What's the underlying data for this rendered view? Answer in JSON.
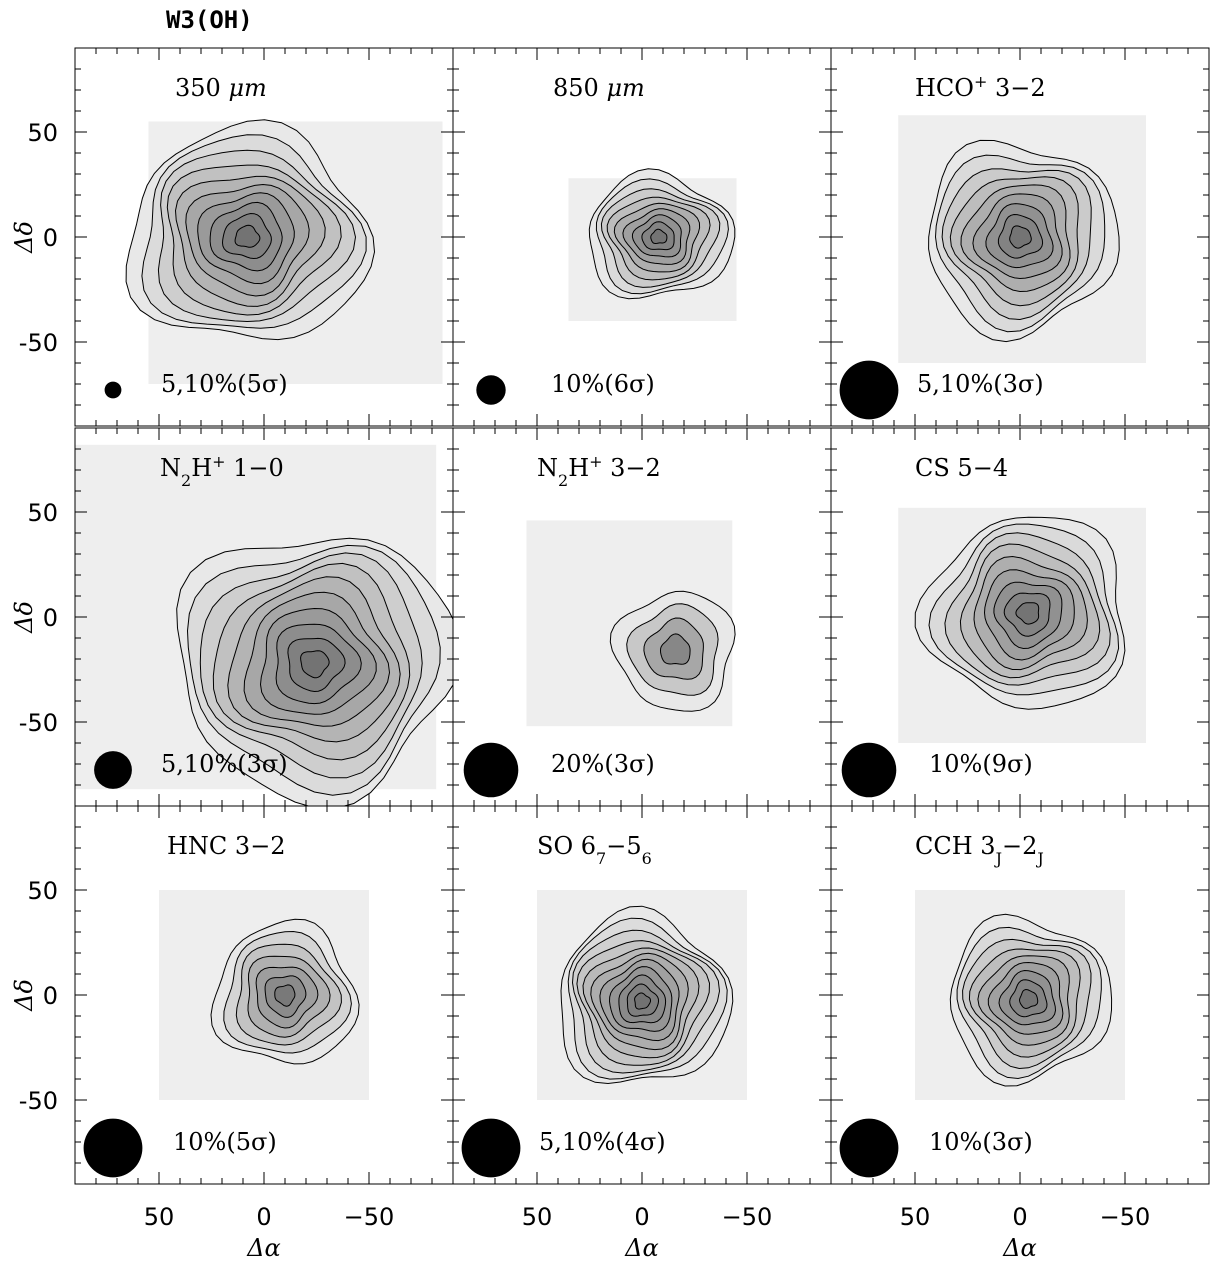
{
  "figure": {
    "title": "W3(OH)",
    "x_axis_label": "Δα",
    "y_axis_label": "Δδ",
    "x_ticks": [
      {
        "value": 50,
        "label": "50"
      },
      {
        "value": 0,
        "label": "0"
      },
      {
        "value": -50,
        "label": "−50"
      }
    ],
    "y_ticks": [
      {
        "value": 50,
        "label": "50"
      },
      {
        "value": 0,
        "label": "0"
      },
      {
        "value": -50,
        "label": "-50"
      }
    ]
  },
  "chart_data": {
    "type": "contour",
    "xlim": [
      90,
      -90
    ],
    "ylim": [
      -90,
      90
    ],
    "layout": "3x3 grid",
    "grayscale_fill": true,
    "panels": [
      {
        "id": "350um",
        "label_main": "350 ",
        "label_sup": "",
        "label_sub": "",
        "label_tail": "μm",
        "label_italic_tail": true,
        "levels": "5,10%(5σ)",
        "beam_diameter": 8,
        "map_extent": {
          "x": [
            55,
            -85
          ],
          "y": [
            -70,
            55
          ]
        },
        "peak": {
          "x": 8,
          "y": 0
        },
        "peak_fraction": 0.85,
        "n_contours": 10
      },
      {
        "id": "850um",
        "label_main": "850 ",
        "label_sup": "",
        "label_sub": "",
        "label_tail": "μm",
        "label_italic_tail": true,
        "levels": "10%(6σ)",
        "beam_diameter": 14,
        "map_extent": {
          "x": [
            35,
            -45
          ],
          "y": [
            -40,
            28
          ]
        },
        "peak": {
          "x": -8,
          "y": 0
        },
        "peak_fraction": 0.9,
        "n_contours": 9
      },
      {
        "id": "hco32",
        "label_main": "HCO",
        "label_sup": "+",
        "label_sub": "",
        "label_tail": " 3−2",
        "label_italic_tail": false,
        "levels": "5,10%(3σ)",
        "beam_diameter": 28,
        "map_extent": {
          "x": [
            58,
            -60
          ],
          "y": [
            -60,
            58
          ]
        },
        "peak": {
          "x": 0,
          "y": 0
        },
        "peak_fraction": 0.8,
        "n_contours": 9
      },
      {
        "id": "n2h10",
        "label_main": "N",
        "label_sub": "2",
        "label_mid": "H",
        "label_sup": "+",
        "label_tail": " 1−0",
        "label_italic_tail": false,
        "levels": "5,10%(3σ)",
        "beam_diameter": 18,
        "map_extent": {
          "x": [
            90,
            -82
          ],
          "y": [
            -82,
            82
          ]
        },
        "peak": {
          "x": -24,
          "y": -22
        },
        "peak_fraction": 0.8,
        "n_contours": 10
      },
      {
        "id": "n2h32",
        "label_main": "N",
        "label_sub": "2",
        "label_mid": "H",
        "label_sup": "+",
        "label_tail": " 3−2",
        "label_italic_tail": false,
        "levels": "20%(3σ)",
        "beam_diameter": 26,
        "map_extent": {
          "x": [
            55,
            -43
          ],
          "y": [
            -52,
            46
          ]
        },
        "peak": {
          "x": -16,
          "y": -16
        },
        "peak_fraction": 0.6,
        "n_contours": 4
      },
      {
        "id": "cs54",
        "label_main": "CS 5−4",
        "label_sup": "",
        "label_sub": "",
        "label_tail": "",
        "label_italic_tail": false,
        "levels": "10%(9σ)",
        "beam_diameter": 26,
        "map_extent": {
          "x": [
            58,
            -60
          ],
          "y": [
            -60,
            52
          ]
        },
        "peak": {
          "x": -4,
          "y": 2
        },
        "peak_fraction": 0.85,
        "n_contours": 9
      },
      {
        "id": "hnc32",
        "label_main": "HNC 3−2",
        "label_sup": "",
        "label_sub": "",
        "label_tail": "",
        "label_italic_tail": false,
        "levels": "10%(5σ)",
        "beam_diameter": 28,
        "map_extent": {
          "x": [
            50,
            -50
          ],
          "y": [
            -50,
            50
          ]
        },
        "peak": {
          "x": -10,
          "y": 0
        },
        "peak_fraction": 0.7,
        "n_contours": 7
      },
      {
        "id": "so",
        "label_main": "SO 6",
        "label_sub": "7",
        "label_mid": "−5",
        "label_sub2": "6",
        "label_sup": "",
        "label_tail": "",
        "label_italic_tail": false,
        "levels": "5,10%(4σ)",
        "beam_diameter": 28,
        "map_extent": {
          "x": [
            50,
            -50
          ],
          "y": [
            -50,
            50
          ]
        },
        "peak": {
          "x": 0,
          "y": -3
        },
        "peak_fraction": 0.85,
        "n_contours": 11
      },
      {
        "id": "cch",
        "label_main": "CCH 3",
        "label_sub": "J",
        "label_mid": "−2",
        "label_sub2": "J",
        "label_sup": "",
        "label_tail": "",
        "label_italic_tail": false,
        "levels": "10%(3σ)",
        "beam_diameter": 28,
        "map_extent": {
          "x": [
            50,
            -50
          ],
          "y": [
            -50,
            50
          ]
        },
        "peak": {
          "x": -4,
          "y": -2
        },
        "peak_fraction": 0.8,
        "n_contours": 9
      }
    ]
  }
}
